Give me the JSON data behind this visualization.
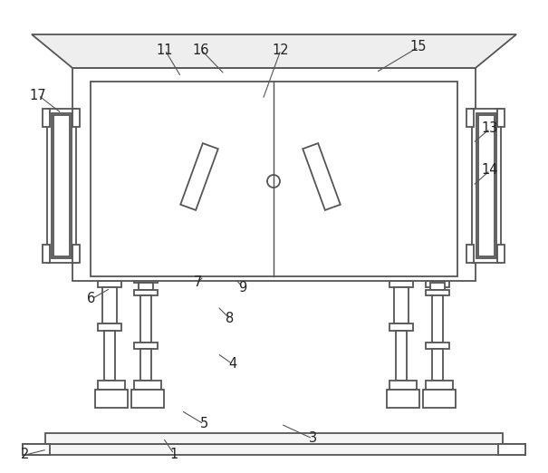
{
  "background_color": "#ffffff",
  "line_color": "#555555",
  "line_width": 1.3,
  "fig_w": 6.05,
  "fig_h": 5.22,
  "dpi": 100
}
